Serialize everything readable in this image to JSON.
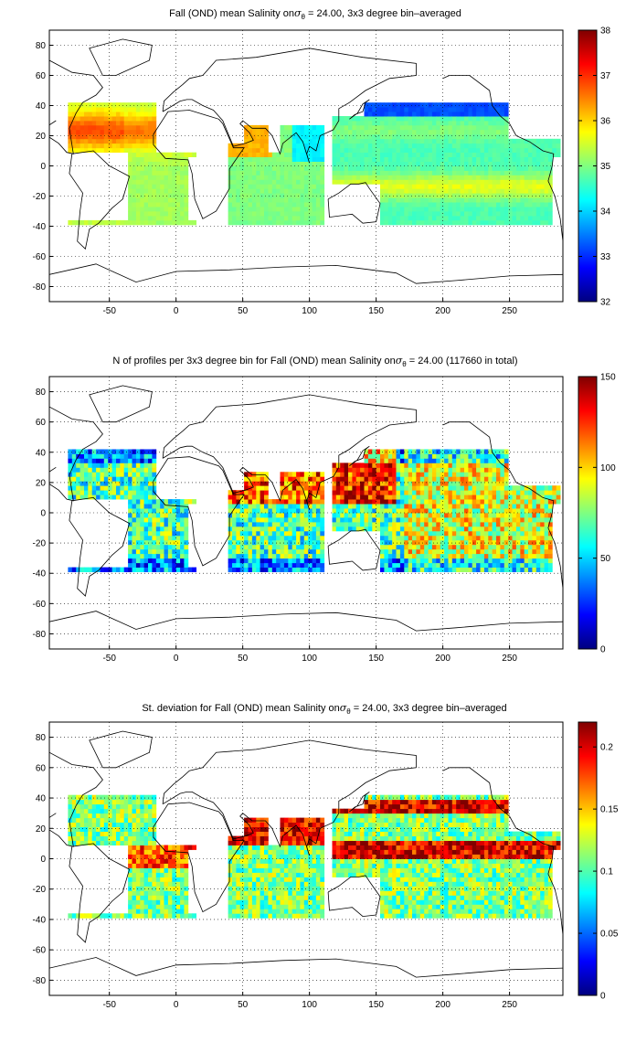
{
  "chart_data": [
    {
      "type": "heatmap",
      "title": "Fall (OND) mean Salinity on σθ = 24.00, 3x3 degree bin–averaged",
      "title_prefix": "Fall (OND) mean Salinity on",
      "title_suffix": " = 24.00, 3x3 degree bin–averaged",
      "xlim": [
        -95,
        290
      ],
      "ylim": [
        -90,
        90
      ],
      "x_ticks": [
        "-50",
        "0",
        "50",
        "100",
        "150",
        "200",
        "250"
      ],
      "y_ticks": [
        "80",
        "60",
        "40",
        "20",
        "0",
        "-20",
        "-40",
        "-60",
        "-80"
      ],
      "colorbar_ticks": [
        "38",
        "37",
        "36",
        "35",
        "34",
        "33",
        "32"
      ],
      "clim": [
        32,
        38
      ],
      "colormap": "jet",
      "grid": true,
      "field": "salinity"
    },
    {
      "type": "heatmap",
      "title": "N of profiles per 3x3 degree bin for Fall (OND) mean Salinity on σθ = 24.00 (117660 in total)",
      "title_prefix": "N of profiles per 3x3 degree bin for Fall (OND) mean Salinity on",
      "title_suffix": " = 24.00 (117660 in total)",
      "xlim": [
        -95,
        290
      ],
      "ylim": [
        -90,
        90
      ],
      "x_ticks": [
        "-50",
        "0",
        "50",
        "100",
        "150",
        "200",
        "250"
      ],
      "y_ticks": [
        "80",
        "60",
        "40",
        "20",
        "0",
        "-20",
        "-40",
        "-60",
        "-80"
      ],
      "colorbar_ticks": [
        "150",
        "100",
        "50",
        "0"
      ],
      "clim": [
        0,
        150
      ],
      "colormap": "jet",
      "grid": true,
      "field": "count"
    },
    {
      "type": "heatmap",
      "title": "St. deviation for Fall (OND) mean Salinity on σθ = 24.00, 3x3 degree bin–averaged",
      "title_prefix": "St. deviation for Fall (OND) mean Salinity on",
      "title_suffix": " = 24.00, 3x3 degree bin–averaged",
      "xlim": [
        -95,
        290
      ],
      "ylim": [
        -90,
        90
      ],
      "x_ticks": [
        "-50",
        "0",
        "50",
        "100",
        "150",
        "200",
        "250"
      ],
      "y_ticks": [
        "80",
        "60",
        "40",
        "20",
        "0",
        "-20",
        "-40",
        "-60",
        "-80"
      ],
      "colorbar_ticks": [
        "0.2",
        "0.15",
        "0.1",
        "0.05",
        "0"
      ],
      "clim": [
        0,
        0.22
      ],
      "colormap": "jet",
      "grid": true,
      "field": "stdev"
    }
  ]
}
